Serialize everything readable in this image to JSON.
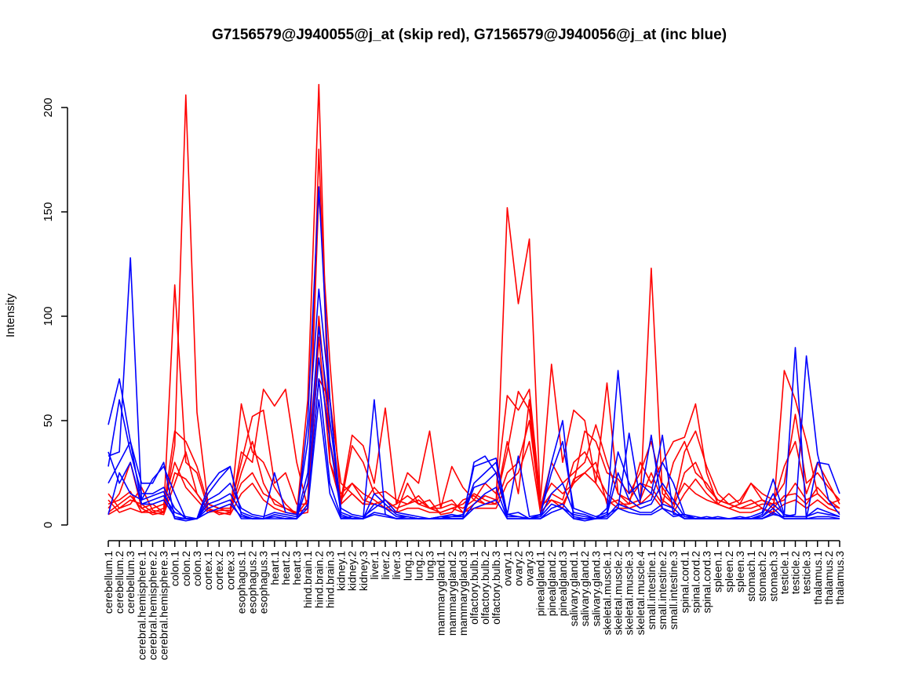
{
  "chart_data": {
    "type": "line",
    "title": "G7156579@J940055@j_at (skip red), G7156579@J940056@j_at (inc blue)",
    "xlabel": "",
    "ylabel": "Intensity",
    "ylim": [
      0,
      200
    ],
    "yticks": [
      0,
      50,
      100,
      150,
      200
    ],
    "categories": [
      "cerebellum.1",
      "cerebellum.2",
      "cerebellum.3",
      "cerebral.hemisphere.1",
      "cerebral.hemisphere.2",
      "cerebral.hemisphere.3",
      "colon.1",
      "colon.2",
      "colon.3",
      "cortex.1",
      "cortex.2",
      "cortex.3",
      "esophagus.1",
      "esophagus.2",
      "esophagus.3",
      "heart.1",
      "heart.2",
      "heart.3",
      "hind.brain.1",
      "hind.brain.2",
      "hind.brain.3",
      "kidney.1",
      "kidney.2",
      "kidney.3",
      "liver.1",
      "liver.2",
      "liver.3",
      "lung.1",
      "lung.2",
      "lung.3",
      "mammarygland.1",
      "mammarygland.2",
      "mammarygland.3",
      "olfactory.bulb.1",
      "olfactory.bulb.2",
      "olfactory.bulb.3",
      "ovary.1",
      "ovary.2",
      "ovary.3",
      "pinealgland.1",
      "pinealgland.2",
      "pinealgland.3",
      "salivary.gland.1",
      "salivary.gland.2",
      "salivary.gland.3",
      "skeletal.muscle.1",
      "skeletal.muscle.2",
      "skeletal.muscle.3",
      "skeletal.muscle.4",
      "small.intestine.1",
      "small.intestine.2",
      "small.intestine.3",
      "spinal.cord.1",
      "spinal.cord.2",
      "spinal.cord.3",
      "spleen.1",
      "spleen.2",
      "spleen.3",
      "stomach.1",
      "stomach.2",
      "stomach.3",
      "testicle.1",
      "testicle.2",
      "testicle.3",
      "thalamus.1",
      "thalamus.2",
      "thalamus.3"
    ],
    "colors": {
      "skip": "#ff0000",
      "inc": "#0000ff"
    },
    "series": [
      {
        "group": "skip",
        "values": [
          15,
          8,
          10,
          18,
          7,
          6,
          115,
          30,
          25,
          8,
          6,
          5,
          58,
          35,
          30,
          18,
          10,
          5,
          60,
          211,
          30,
          15,
          20,
          12,
          10,
          12,
          8,
          10,
          12,
          8,
          6,
          8,
          10,
          15,
          12,
          10,
          152,
          106,
          137,
          10,
          12,
          8,
          22,
          25,
          30,
          10,
          12,
          8,
          10,
          123,
          15,
          10,
          20,
          15,
          12,
          10,
          8,
          10,
          12,
          8,
          5,
          74,
          60,
          40,
          15,
          10,
          12
        ]
      },
      {
        "group": "skip",
        "values": [
          10,
          12,
          16,
          6,
          6,
          8,
          45,
          40,
          28,
          10,
          8,
          6,
          35,
          30,
          65,
          57,
          65,
          30,
          8,
          180,
          40,
          12,
          43,
          38,
          20,
          56,
          10,
          25,
          20,
          45,
          8,
          28,
          18,
          12,
          20,
          15,
          62,
          55,
          65,
          12,
          77,
          30,
          55,
          50,
          20,
          68,
          15,
          10,
          30,
          20,
          30,
          40,
          42,
          58,
          25,
          10,
          15,
          10,
          20,
          12,
          10,
          28,
          40,
          15,
          30,
          20,
          10
        ]
      },
      {
        "group": "skip",
        "values": [
          8,
          15,
          30,
          8,
          10,
          6,
          38,
          206,
          54,
          10,
          8,
          8,
          30,
          52,
          55,
          20,
          25,
          10,
          10,
          160,
          78,
          10,
          38,
          30,
          15,
          16,
          12,
          10,
          14,
          8,
          10,
          12,
          6,
          10,
          14,
          12,
          35,
          64,
          55,
          10,
          20,
          15,
          20,
          45,
          40,
          25,
          22,
          15,
          25,
          40,
          18,
          10,
          35,
          45,
          28,
          15,
          10,
          12,
          20,
          15,
          12,
          20,
          53,
          20,
          25,
          18,
          12
        ]
      },
      {
        "group": "skip",
        "values": [
          5,
          8,
          12,
          10,
          6,
          5,
          20,
          35,
          15,
          8,
          5,
          6,
          25,
          40,
          20,
          10,
          8,
          5,
          12,
          70,
          60,
          20,
          15,
          10,
          18,
          12,
          6,
          20,
          10,
          12,
          5,
          6,
          12,
          14,
          10,
          12,
          40,
          15,
          60,
          8,
          30,
          20,
          25,
          30,
          48,
          30,
          15,
          12,
          20,
          18,
          10,
          30,
          40,
          25,
          20,
          12,
          10,
          8,
          10,
          12,
          8,
          14,
          15,
          10,
          18,
          12,
          8
        ]
      },
      {
        "group": "skip",
        "values": [
          12,
          6,
          8,
          6,
          8,
          10,
          30,
          18,
          12,
          6,
          7,
          7,
          20,
          25,
          15,
          12,
          8,
          6,
          8,
          100,
          40,
          12,
          20,
          15,
          12,
          8,
          10,
          14,
          10,
          8,
          8,
          10,
          8,
          12,
          10,
          10,
          25,
          30,
          50,
          8,
          15,
          12,
          30,
          35,
          25,
          15,
          10,
          10,
          12,
          25,
          12,
          8,
          25,
          30,
          18,
          12,
          10,
          8,
          8,
          10,
          10,
          12,
          20,
          12,
          15,
          10,
          8
        ]
      },
      {
        "group": "skip",
        "values": [
          6,
          10,
          14,
          8,
          5,
          6,
          25,
          22,
          15,
          7,
          6,
          5,
          15,
          20,
          12,
          8,
          6,
          5,
          6,
          90,
          30,
          10,
          15,
          10,
          10,
          8,
          6,
          8,
          8,
          6,
          6,
          8,
          6,
          8,
          8,
          8,
          20,
          25,
          40,
          6,
          12,
          10,
          20,
          25,
          20,
          12,
          8,
          8,
          10,
          15,
          8,
          6,
          15,
          22,
          15,
          10,
          8,
          6,
          6,
          8,
          6,
          10,
          12,
          8,
          12,
          8,
          6
        ]
      },
      {
        "group": "inc",
        "values": [
          48,
          70,
          40,
          20,
          20,
          30,
          3,
          2,
          3,
          15,
          22,
          28,
          5,
          3,
          3,
          4,
          3,
          3,
          50,
          162,
          60,
          5,
          3,
          3,
          60,
          5,
          3,
          4,
          3,
          3,
          4,
          3,
          3,
          30,
          33,
          25,
          5,
          33,
          4,
          5,
          30,
          50,
          3,
          2,
          3,
          8,
          74,
          15,
          20,
          15,
          43,
          5,
          5,
          3,
          3,
          4,
          3,
          3,
          3,
          4,
          10,
          5,
          85,
          3,
          30,
          29,
          15
        ]
      },
      {
        "group": "inc",
        "values": [
          33,
          35,
          128,
          12,
          22,
          28,
          15,
          3,
          3,
          18,
          25,
          28,
          5,
          3,
          3,
          25,
          6,
          5,
          40,
          113,
          60,
          3,
          4,
          3,
          15,
          10,
          5,
          4,
          3,
          3,
          4,
          5,
          4,
          28,
          30,
          32,
          5,
          6,
          3,
          4,
          10,
          8,
          5,
          4,
          3,
          5,
          8,
          44,
          12,
          43,
          8,
          4,
          5,
          3,
          4,
          3,
          3,
          4,
          3,
          3,
          5,
          4,
          5,
          81,
          34,
          12,
          5
        ]
      },
      {
        "group": "inc",
        "values": [
          28,
          60,
          35,
          15,
          15,
          18,
          8,
          3,
          3,
          12,
          15,
          20,
          8,
          5,
          4,
          6,
          5,
          4,
          25,
          95,
          50,
          8,
          5,
          4,
          8,
          12,
          6,
          5,
          4,
          3,
          4,
          4,
          5,
          20,
          25,
          30,
          5,
          4,
          3,
          5,
          25,
          40,
          8,
          6,
          4,
          6,
          35,
          20,
          10,
          12,
          30,
          20,
          5,
          4,
          3,
          3,
          3,
          3,
          4,
          6,
          22,
          5,
          4,
          4,
          8,
          6,
          4
        ]
      },
      {
        "group": "inc",
        "values": [
          20,
          30,
          40,
          10,
          12,
          14,
          6,
          4,
          3,
          10,
          12,
          15,
          6,
          4,
          3,
          5,
          4,
          3,
          20,
          80,
          40,
          6,
          4,
          3,
          10,
          8,
          4,
          4,
          3,
          3,
          3,
          4,
          4,
          18,
          20,
          25,
          4,
          4,
          3,
          4,
          15,
          20,
          6,
          5,
          3,
          5,
          25,
          12,
          8,
          10,
          20,
          12,
          4,
          3,
          3,
          3,
          3,
          3,
          3,
          5,
          15,
          4,
          4,
          4,
          6,
          5,
          4
        ]
      },
      {
        "group": "inc",
        "values": [
          5,
          25,
          15,
          12,
          14,
          16,
          3,
          3,
          3,
          8,
          10,
          12,
          3,
          3,
          3,
          3,
          3,
          3,
          10,
          70,
          20,
          4,
          3,
          3,
          6,
          5,
          3,
          3,
          3,
          3,
          3,
          3,
          3,
          10,
          15,
          18,
          3,
          3,
          3,
          3,
          8,
          10,
          4,
          3,
          3,
          4,
          10,
          8,
          6,
          6,
          10,
          8,
          3,
          3,
          3,
          3,
          3,
          3,
          3,
          4,
          8,
          3,
          3,
          3,
          4,
          4,
          3
        ]
      },
      {
        "group": "inc",
        "values": [
          35,
          20,
          30,
          10,
          10,
          12,
          4,
          3,
          3,
          6,
          8,
          10,
          4,
          3,
          3,
          4,
          3,
          3,
          8,
          60,
          15,
          3,
          3,
          3,
          5,
          4,
          3,
          3,
          3,
          3,
          3,
          3,
          3,
          8,
          10,
          12,
          3,
          3,
          3,
          3,
          6,
          8,
          3,
          3,
          3,
          3,
          8,
          6,
          5,
          5,
          8,
          6,
          3,
          3,
          3,
          3,
          3,
          3,
          3,
          3,
          6,
          3,
          3,
          3,
          3,
          3,
          3
        ]
      }
    ]
  }
}
